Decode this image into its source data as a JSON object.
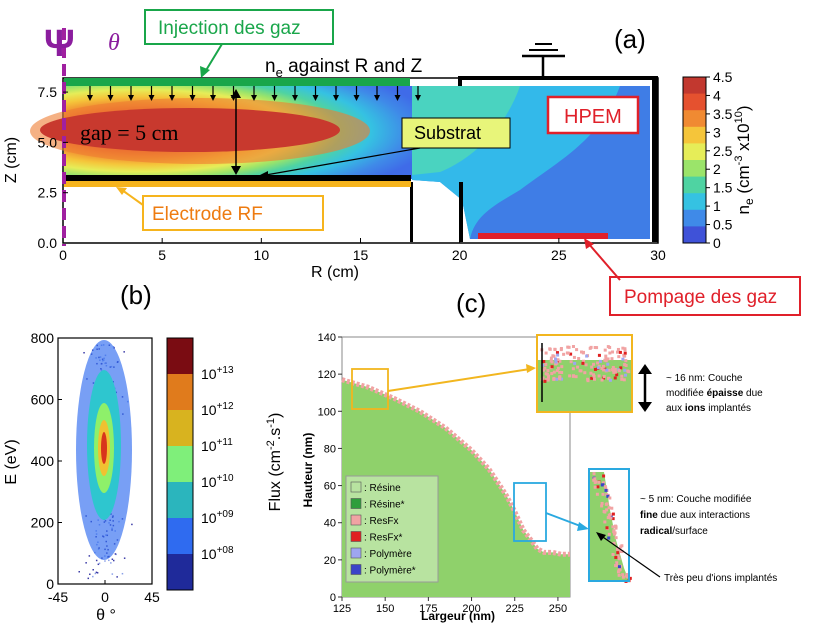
{
  "panel_a": {
    "panel_label": "(a)",
    "title": "n_e against R and Z",
    "title_main": "n",
    "title_sub": "e",
    "title_rest": " against R and Z",
    "theta_symbol": "θ",
    "psi_symbol": "Ψ",
    "injection_label": "Injection des gaz",
    "gap_label": "gap = 5 cm",
    "substrat_label": "Substrat",
    "electrode_label": "Electrode RF",
    "hpem_label": "HPEM",
    "pompage_label": "Pompage des gaz",
    "colorbar_label": "ne (cm-3 x10^10)",
    "colorbar_label_parts": [
      "n",
      "e",
      " (cm",
      "-3",
      " x10",
      "10",
      ")"
    ],
    "colorbar_ticks": [
      "4.5",
      "4",
      "3.5",
      "3",
      "2.5",
      "2",
      "1.5",
      "1",
      "0.5",
      "0"
    ],
    "colors": {
      "inject": "#19a64a",
      "electrode": "#f6b41d",
      "hpem": "#e0202a",
      "pompage_bar": "#e0202a"
    }
  },
  "panel_b": {
    "panel_label": "(b)",
    "colorbar_label": "Flux (cm-2.s-1)",
    "colorbar_label_parts": [
      "Flux (cm",
      "-2",
      ".s",
      "-1",
      ")"
    ],
    "colorbar_ticks": [
      "10+13",
      "10+12",
      "10+11",
      "10+10",
      "10+09",
      "10+08"
    ],
    "colorbar_ticks_parts": [
      [
        "10",
        "+13"
      ],
      [
        "10",
        "+12"
      ],
      [
        "10",
        "+11"
      ],
      [
        "10",
        "+10"
      ],
      [
        "10",
        "+09"
      ],
      [
        "10",
        "+08"
      ]
    ],
    "colorbar_colors": [
      "#7a0c12",
      "#e07b1c",
      "#d8b31f",
      "#7fef7a",
      "#2bb5bd",
      "#2f6bf0",
      "#1f2a9a"
    ]
  },
  "panel_c": {
    "panel_label": "(c)",
    "legend": [
      {
        "label": ": Résine",
        "color": "#b8e3a0"
      },
      {
        "label": ": Résine*",
        "color": "#2e9e3c"
      },
      {
        "label": ": ResFx",
        "color": "#f1a3a3"
      },
      {
        "label": ": ResFx*",
        "color": "#e02020"
      },
      {
        "label": ": Polymère",
        "color": "#9ea6f0"
      },
      {
        "label": ": Polymère*",
        "color": "#3a45c8"
      }
    ],
    "annotation_1": {
      "pre": "~ 16 nm: Couche",
      "line2_pre": "modifiée ",
      "line2_bold": "épaisse",
      "line2_post": " due",
      "line3_pre": "aux ",
      "line3_bold": "ions",
      "line3_post": " implantés"
    },
    "annotation_2": {
      "line1": "~ 5 nm: Couche modifiée",
      "line2_bold": "fine",
      "line2_post": " due aux interactions",
      "line3_bold": "radical",
      "line3_post": "/surface"
    },
    "annotation_3": "Très peu d'ions implantés",
    "colors": {
      "fill": "#8fd16b",
      "surface": "#f1a3a3",
      "zoom1_frame": "#f2b61f",
      "zoom2_frame": "#2aa9e0"
    }
  },
  "chart_data": [
    {
      "type": "heatmap",
      "title": "n_e against R and Z",
      "xlabel": "R (cm)",
      "ylabel": "Z (cm)",
      "x_ticks": [
        "0",
        "5",
        "10",
        "15",
        "20",
        "25",
        "30"
      ],
      "y_ticks": [
        "0.0",
        "2.5",
        "5.0",
        "7.5"
      ],
      "xlim": [
        0,
        30
      ],
      "ylim": [
        0,
        8.2
      ],
      "colorbar": {
        "min": 0,
        "max": 4.5,
        "label": "ne (cm-3 x10^10)"
      },
      "grid": false
    },
    {
      "type": "scatter",
      "xlabel": "θ °",
      "ylabel": "E (eV)",
      "x_ticks": [
        "-45",
        "0",
        "45"
      ],
      "y_ticks": [
        "0",
        "200",
        "400",
        "600",
        "800"
      ],
      "xlim": [
        -45,
        45
      ],
      "ylim": [
        0,
        800
      ],
      "peak": {
        "theta": 0,
        "E": 450
      }
    },
    {
      "type": "area",
      "xlabel": "Largeur (nm)",
      "ylabel": "Hauteur (nm)",
      "x_ticks": [
        "125",
        "150",
        "175",
        "200",
        "225",
        "250"
      ],
      "y_ticks": [
        "0",
        "20",
        "40",
        "60",
        "80",
        "100",
        "120",
        "140"
      ],
      "xlim": [
        125,
        257
      ],
      "ylim": [
        0,
        140
      ],
      "profile": {
        "x": [
          125,
          140,
          155,
          170,
          185,
          200,
          210,
          220,
          225,
          230,
          235,
          238,
          242,
          247,
          252,
          257
        ],
        "y": [
          117,
          113,
          107,
          100,
          91,
          79,
          69,
          55,
          46,
          36,
          30,
          26,
          24,
          24,
          23,
          23
        ]
      }
    }
  ]
}
